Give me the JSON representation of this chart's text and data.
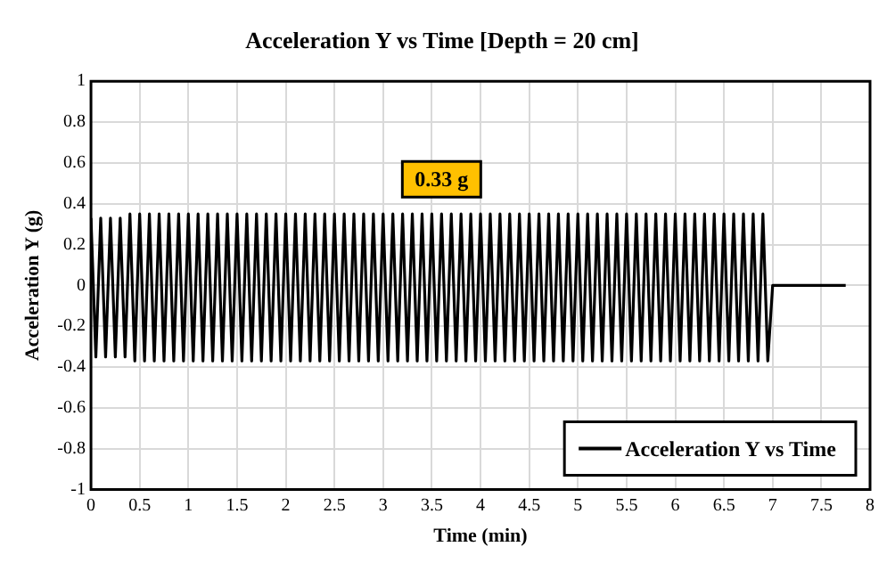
{
  "chart_data": {
    "type": "line",
    "title": "Acceleration Y vs Time [Depth = 20 cm]",
    "xlabel": "Time (min)",
    "ylabel": "Acceleration Y (g)",
    "annotations": [
      "0.33 g"
    ],
    "x": [
      0,
      0.05,
      0.1,
      0.15,
      0.2,
      0.25,
      0.3,
      0.35,
      0.4,
      0.45,
      0.5,
      0.55,
      0.6,
      0.65,
      0.7,
      0.75,
      0.8,
      0.85,
      0.9,
      0.95,
      1,
      1.05,
      1.1,
      1.15,
      1.2,
      1.25,
      1.3,
      1.35,
      1.4,
      1.45,
      1.5,
      1.55,
      1.6,
      1.65,
      1.7,
      1.75,
      1.8,
      1.85,
      1.9,
      1.95,
      2,
      2.05,
      2.1,
      2.15,
      2.2,
      2.25,
      2.3,
      2.35,
      2.4,
      2.45,
      2.5,
      2.55,
      2.6,
      2.65,
      2.7,
      2.75,
      2.8,
      2.85,
      2.9,
      2.95,
      3,
      3.05,
      3.1,
      3.15,
      3.2,
      3.25,
      3.3,
      3.35,
      3.4,
      3.45,
      3.5,
      3.55,
      3.6,
      3.65,
      3.7,
      3.75,
      3.8,
      3.85,
      3.9,
      3.95,
      4,
      4.05,
      4.1,
      4.15,
      4.2,
      4.25,
      4.3,
      4.35,
      4.4,
      4.45,
      4.5,
      4.55,
      4.6,
      4.65,
      4.7,
      4.75,
      4.8,
      4.85,
      4.9,
      4.95,
      5,
      5.05,
      5.1,
      5.15,
      5.2,
      5.25,
      5.3,
      5.35,
      5.4,
      5.45,
      5.5,
      5.55,
      5.6,
      5.65,
      5.7,
      5.75,
      5.8,
      5.85,
      5.9,
      5.95,
      6,
      6.05,
      6.1,
      6.15,
      6.2,
      6.25,
      6.3,
      6.35,
      6.4,
      6.45,
      6.5,
      6.55,
      6.6,
      6.65,
      6.7,
      6.75,
      6.8,
      6.85,
      6.9,
      6.95,
      7,
      7.75
    ],
    "series": [
      {
        "name": "Acceleration Y vs Time",
        "color": "#000000",
        "values": [
          0.33,
          -0.35,
          0.33,
          -0.35,
          0.33,
          -0.35,
          0.33,
          -0.35,
          0.35,
          -0.37,
          0.35,
          -0.37,
          0.35,
          -0.37,
          0.35,
          -0.37,
          0.35,
          -0.37,
          0.35,
          -0.37,
          0.35,
          -0.37,
          0.35,
          -0.37,
          0.35,
          -0.37,
          0.35,
          -0.37,
          0.35,
          -0.37,
          0.35,
          -0.37,
          0.35,
          -0.37,
          0.35,
          -0.37,
          0.35,
          -0.37,
          0.35,
          -0.37,
          0.35,
          -0.37,
          0.35,
          -0.37,
          0.35,
          -0.37,
          0.35,
          -0.37,
          0.35,
          -0.37,
          0.35,
          -0.37,
          0.35,
          -0.37,
          0.35,
          -0.37,
          0.35,
          -0.37,
          0.35,
          -0.37,
          0.35,
          -0.37,
          0.35,
          -0.37,
          0.35,
          -0.37,
          0.35,
          -0.37,
          0.35,
          -0.37,
          0.35,
          -0.37,
          0.35,
          -0.37,
          0.35,
          -0.37,
          0.35,
          -0.37,
          0.35,
          -0.37,
          0.35,
          -0.37,
          0.35,
          -0.37,
          0.35,
          -0.37,
          0.35,
          -0.37,
          0.35,
          -0.37,
          0.35,
          -0.37,
          0.35,
          -0.37,
          0.35,
          -0.37,
          0.35,
          -0.37,
          0.35,
          -0.37,
          0.35,
          -0.37,
          0.35,
          -0.37,
          0.35,
          -0.37,
          0.35,
          -0.37,
          0.35,
          -0.37,
          0.35,
          -0.37,
          0.35,
          -0.37,
          0.35,
          -0.37,
          0.35,
          -0.37,
          0.35,
          -0.37,
          0.35,
          -0.37,
          0.35,
          -0.37,
          0.35,
          -0.37,
          0.35,
          -0.37,
          0.35,
          -0.37,
          0.35,
          -0.37,
          0.35,
          -0.37,
          0.35,
          -0.37,
          0.35,
          -0.37,
          0.35,
          -0.37,
          0,
          0
        ]
      }
    ],
    "xlim": [
      0,
      8
    ],
    "xticks": [
      0,
      0.5,
      1,
      1.5,
      2,
      2.5,
      3,
      3.5,
      4,
      4.5,
      5,
      5.5,
      6,
      6.5,
      7,
      7.5,
      8
    ],
    "ylim": [
      -1,
      1
    ],
    "yticks": [
      -1,
      -0.8,
      -0.6,
      -0.4,
      -0.2,
      0,
      0.2,
      0.4,
      0.6,
      0.8,
      1
    ],
    "grid": true,
    "legend": "bottom right",
    "marker": "none",
    "line_style": "solid"
  }
}
